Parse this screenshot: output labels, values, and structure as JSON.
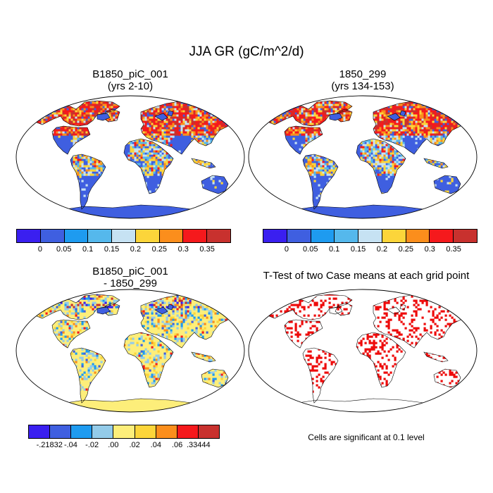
{
  "title": "JJA GR (gC/m^2/d)",
  "panels": [
    {
      "title_line1": "B1850_piC_001",
      "title_line2": "(yrs 2-10)",
      "colormap": "absolute"
    },
    {
      "title_line1": "1850_299",
      "title_line2": "(yrs 134-153)",
      "colormap": "absolute"
    },
    {
      "title_line1": "B1850_piC_001",
      "title_line2": "- 1850_299",
      "colormap": "difference"
    },
    {
      "title_line1": "T-Test of two Case means at each grid point",
      "title_line2": "",
      "colormap": "significance"
    }
  ],
  "colorbar_absolute": {
    "colors": [
      "#3a1ff0",
      "#3f5fe0",
      "#1e9bf0",
      "#55b8ec",
      "#c6e2f3",
      "#fcd53a",
      "#fb8e1c",
      "#f5191c",
      "#c8312e"
    ],
    "labels": [
      "0",
      "0.05",
      "0.1",
      "0.15",
      "0.2",
      "0.25",
      "0.3",
      "0.35"
    ]
  },
  "colorbar_difference": {
    "colors": [
      "#3a1ff0",
      "#3f5fe0",
      "#1e9bf0",
      "#93cbe9",
      "#fdee7a",
      "#fcd53a",
      "#fb8e1c",
      "#f5191c",
      "#c8312e"
    ],
    "labels": [
      "-.21832",
      "-.04",
      "-.02",
      ".00",
      ".02",
      ".04",
      ".06",
      ".33444"
    ]
  },
  "significance_color": "#ee0b0b",
  "note": "Cells are significant at 0.1 level"
}
